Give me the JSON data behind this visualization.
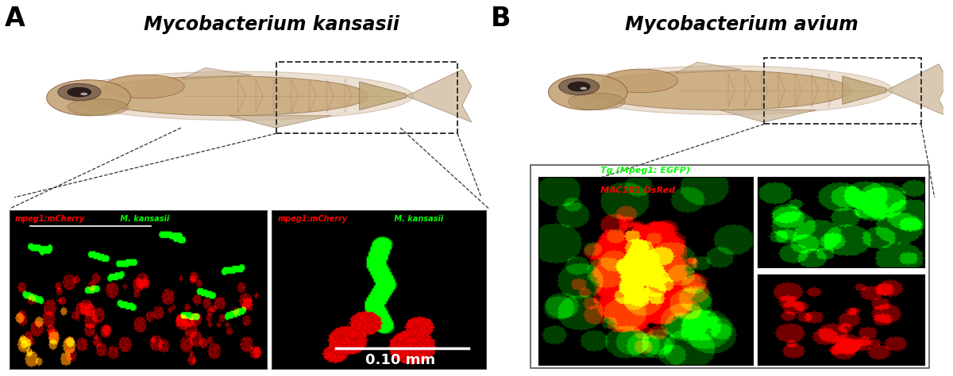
{
  "panel_A_label": "A",
  "panel_B_label": "B",
  "title_A": "Mycobacterium kansasii",
  "title_B": "Mycobacterium avium",
  "label_A_left_red": "mpeg1:mCherry",
  "label_A_left_green": " M. kansasii",
  "label_A_right_red": "mpeg1:mCherry",
  "label_A_right_green": " M. kansasii",
  "label_B_green": "Tg (Mpeg1: EGFP)",
  "label_B_red": "MAC101 DsRed",
  "scalebar_text": "0.10 mm",
  "bg_color": "#ffffff",
  "dashed_box_color": "#333333"
}
